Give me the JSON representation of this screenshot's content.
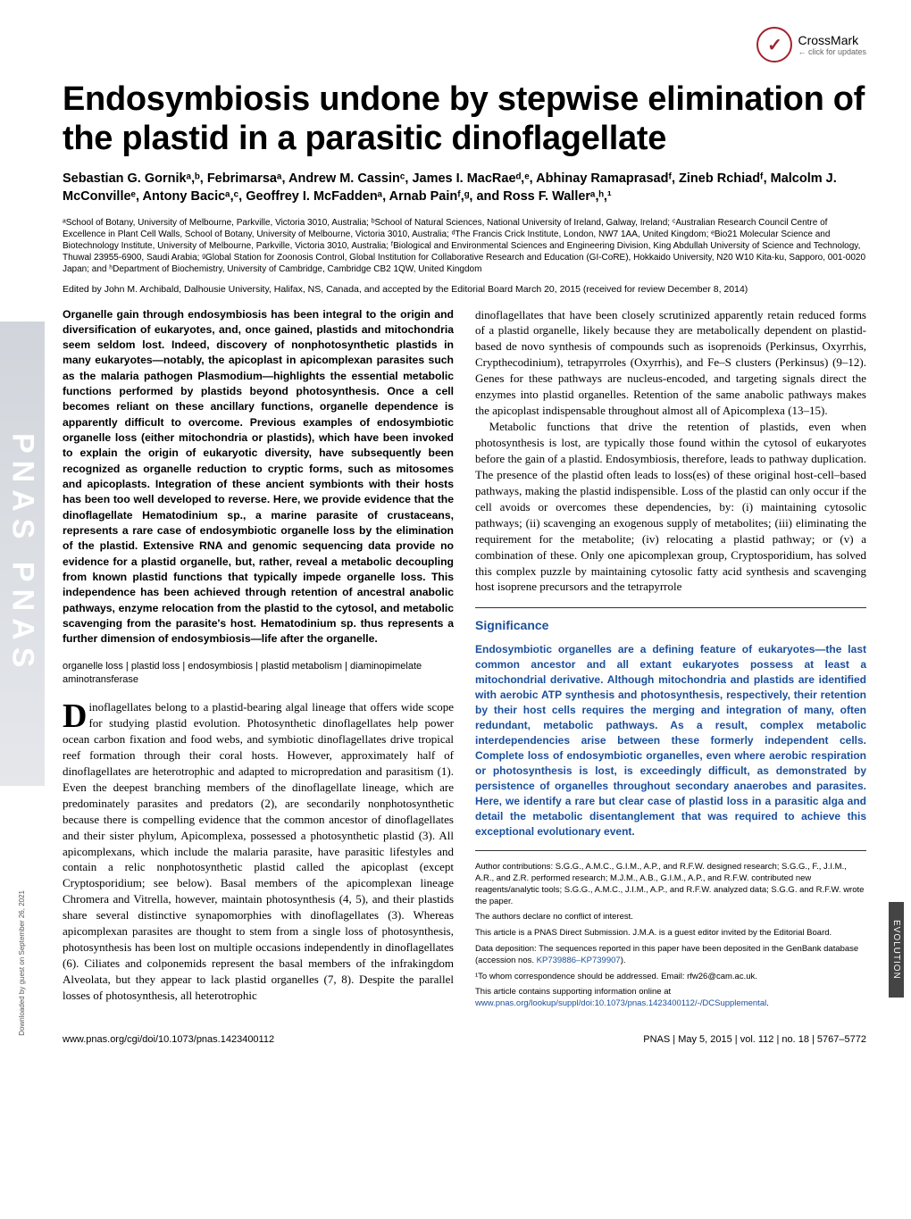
{
  "crossmark": {
    "label": "CrossMark",
    "sub": "← click for updates"
  },
  "pnas_vertical": "PNAS  PNAS",
  "sidebar_label": "EVOLUTION",
  "dl_note": "Downloaded by guest on September 26, 2021",
  "title": "Endosymbiosis undone by stepwise elimination of the plastid in a parasitic dinoflagellate",
  "authors": "Sebastian G. Gornikᵃ,ᵇ, Febrimarsaᵃ, Andrew M. Cassinᶜ, James I. MacRaeᵈ,ᵉ, Abhinay Ramaprasadᶠ, Zineb Rchiadᶠ, Malcolm J. McConvilleᵉ, Antony Bacicᵃ,ᶜ, Geoffrey I. McFaddenᵃ, Arnab Painᶠ,ᵍ, and Ross F. Wallerᵃ,ʰ,¹",
  "affiliations": "ᵃSchool of Botany, University of Melbourne, Parkville, Victoria 3010, Australia; ᵇSchool of Natural Sciences, National University of Ireland, Galway, Ireland; ᶜAustralian Research Council Centre of Excellence in Plant Cell Walls, School of Botany, University of Melbourne, Victoria 3010, Australia; ᵈThe Francis Crick Institute, London, NW7 1AA, United Kingdom; ᵉBio21 Molecular Science and Biotechnology Institute, University of Melbourne, Parkville, Victoria 3010, Australia; ᶠBiological and Environmental Sciences and Engineering Division, King Abdullah University of Science and Technology, Thuwal 23955-6900, Saudi Arabia; ᵍGlobal Station for Zoonosis Control, Global Institution for Collaborative Research and Education (GI-CoRE), Hokkaido University, N20 W10 Kita-ku, Sapporo, 001-0020 Japan; and ʰDepartment of Biochemistry, University of Cambridge, Cambridge CB2 1QW, United Kingdom",
  "edited": "Edited by John M. Archibald, Dalhousie University, Halifax, NS, Canada, and accepted by the Editorial Board March 20, 2015 (received for review December 8, 2014)",
  "abstract": "Organelle gain through endosymbiosis has been integral to the origin and diversification of eukaryotes, and, once gained, plastids and mitochondria seem seldom lost. Indeed, discovery of nonphotosynthetic plastids in many eukaryotes—notably, the apicoplast in apicomplexan parasites such as the malaria pathogen Plasmodium—highlights the essential metabolic functions performed by plastids beyond photosynthesis. Once a cell becomes reliant on these ancillary functions, organelle dependence is apparently difficult to overcome. Previous examples of endosymbiotic organelle loss (either mitochondria or plastids), which have been invoked to explain the origin of eukaryotic diversity, have subsequently been recognized as organelle reduction to cryptic forms, such as mitosomes and apicoplasts. Integration of these ancient symbionts with their hosts has been too well developed to reverse. Here, we provide evidence that the dinoflagellate Hematodinium sp., a marine parasite of crustaceans, represents a rare case of endosymbiotic organelle loss by the elimination of the plastid. Extensive RNA and genomic sequencing data provide no evidence for a plastid organelle, but, rather, reveal a metabolic decoupling from known plastid functions that typically impede organelle loss. This independence has been achieved through retention of ancestral anabolic pathways, enzyme relocation from the plastid to the cytosol, and metabolic scavenging from the parasite's host. Hematodinium sp. thus represents a further dimension of endosymbiosis—life after the organelle.",
  "keywords": "organelle loss | plastid loss | endosymbiosis | plastid metabolism | diaminopimelate aminotransferase",
  "body_col1_dropcap": "D",
  "body_col1": "inoflagellates belong to a plastid-bearing algal lineage that offers wide scope for studying plastid evolution. Photosynthetic dinoflagellates help power ocean carbon fixation and food webs, and symbiotic dinoflagellates drive tropical reef formation through their coral hosts. However, approximately half of dinoflagellates are heterotrophic and adapted to micropredation and parasitism (1). Even the deepest branching members of the dinoflagellate lineage, which are predominately parasites and predators (2), are secondarily nonphotosynthetic because there is compelling evidence that the common ancestor of dinoflagellates and their sister phylum, Apicomplexa, possessed a photosynthetic plastid (3). All apicomplexans, which include the malaria parasite, have parasitic lifestyles and contain a relic nonphotosynthetic plastid called the apicoplast (except Cryptosporidium; see below). Basal members of the apicomplexan lineage Chromera and Vitrella, however, maintain photosynthesis (4, 5), and their plastids share several distinctive synapomorphies with dinoflagellates (3). Whereas apicomplexan parasites are thought to stem from a single loss of photosynthesis, photosynthesis has been lost on multiple occasions independently in dinoflagellates (6). Ciliates and colponemids represent the basal members of the infrakingdom Alveolata, but they appear to lack plastid organelles (7, 8). Despite the parallel losses of photosynthesis, all heterotrophic",
  "body_col2_p1": "dinoflagellates that have been closely scrutinized apparently retain reduced forms of a plastid organelle, likely because they are metabolically dependent on plastid-based de novo synthesis of compounds such as isoprenoids (Perkinsus, Oxyrrhis, Crypthecodinium), tetrapyrroles (Oxyrrhis), and Fe–S clusters (Perkinsus) (9–12). Genes for these pathways are nucleus-encoded, and targeting signals direct the enzymes into plastid organelles. Retention of the same anabolic pathways makes the apicoplast indispensable throughout almost all of Apicomplexa (13–15).",
  "body_col2_p2": "Metabolic functions that drive the retention of plastids, even when photosynthesis is lost, are typically those found within the cytosol of eukaryotes before the gain of a plastid. Endosymbiosis, therefore, leads to pathway duplication. The presence of the plastid often leads to loss(es) of these original host-cell–based pathways, making the plastid indispensible. Loss of the plastid can only occur if the cell avoids or overcomes these dependencies, by: (i) maintaining cytosolic pathways; (ii) scavenging an exogenous supply of metabolites; (iii) eliminating the requirement for the metabolite; (iv) relocating a plastid pathway; or (v) a combination of these. Only one apicomplexan group, Cryptosporidium, has solved this complex puzzle by maintaining cytosolic fatty acid synthesis and scavenging host isoprene precursors and the tetrapyrrole",
  "significance": {
    "heading": "Significance",
    "text": "Endosymbiotic organelles are a defining feature of eukaryotes—the last common ancestor and all extant eukaryotes possess at least a mitochondrial derivative. Although mitochondria and plastids are identified with aerobic ATP synthesis and photosynthesis, respectively, their retention by their host cells requires the merging and integration of many, often redundant, metabolic pathways. As a result, complex metabolic interdependencies arise between these formerly independent cells. Complete loss of endosymbiotic organelles, even where aerobic respiration or photosynthesis is lost, is exceedingly difficult, as demonstrated by persistence of organelles throughout secondary anaerobes and parasites. Here, we identify a rare but clear case of plastid loss in a parasitic alga and detail the metabolic disentanglement that was required to achieve this exceptional evolutionary event."
  },
  "footnotes": {
    "contrib": "Author contributions: S.G.G., A.M.C., G.I.M., A.P., and R.F.W. designed research; S.G.G., F., J.I.M., A.R., and Z.R. performed research; M.J.M., A.B., G.I.M., A.P., and R.F.W. contributed new reagents/analytic tools; S.G.G., A.M.C., J.I.M., A.P., and R.F.W. analyzed data; S.G.G. and R.F.W. wrote the paper.",
    "conflict": "The authors declare no conflict of interest.",
    "submission": "This article is a PNAS Direct Submission. J.M.A. is a guest editor invited by the Editorial Board.",
    "data": "Data deposition: The sequences reported in this paper have been deposited in the GenBank database (accession nos. ",
    "data_link": "KP739886–KP739907",
    "data_end": ").",
    "corr": "¹To whom correspondence should be addressed. Email: rfw26@cam.ac.uk.",
    "si_pre": "This article contains supporting information online at ",
    "si_link": "www.pnas.org/lookup/suppl/doi:10.1073/pnas.1423400112/-/DCSupplemental",
    "si_end": "."
  },
  "footer": {
    "doi": "www.pnas.org/cgi/doi/10.1073/pnas.1423400112",
    "cite": "PNAS | May 5, 2015 | vol. 112 | no. 18 | 5767–5772"
  },
  "colors": {
    "link": "#1a4f9c",
    "sig": "#1a4f9c",
    "crossmark": "#a0232d"
  }
}
